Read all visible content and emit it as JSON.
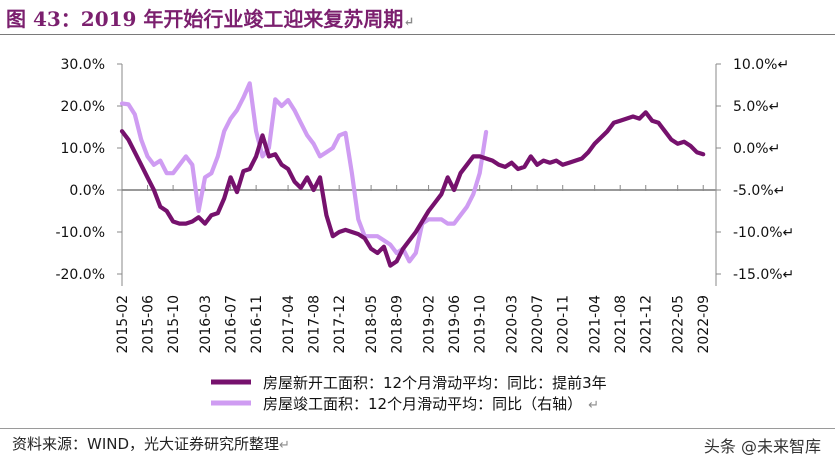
{
  "header": {
    "title": "图 43：2019 年开始行业竣工迎来复苏周期",
    "mark": "↵"
  },
  "footer": {
    "source": "资料来源：WIND，光大证券研究所整理",
    "watermark": "头条 @未来智库"
  },
  "colors": {
    "title": "#7b1f6e",
    "new_starts": "#76116d",
    "completions": "#cf9cf2",
    "zero_line": "#999999",
    "axis": "#888888"
  },
  "chart_data": {
    "type": "line",
    "legend_position": "bottom",
    "grid": false,
    "x_tick_labels": [
      "2015-02",
      "2015-06",
      "2015-10",
      "2016-03",
      "2016-07",
      "2016-11",
      "2017-04",
      "2017-08",
      "2017-12",
      "2018-05",
      "2018-09",
      "2019-02",
      "2019-06",
      "2019-10",
      "2020-03",
      "2020-07",
      "2020-11",
      "2021-04",
      "2021-08",
      "2021-12",
      "2022-05",
      "2022-09"
    ],
    "x_range": [
      "2015-02",
      "2022-11"
    ],
    "y_left": {
      "ticks": [
        "30.0%",
        "20.0%",
        "10.0%",
        "0.0%",
        "-10.0%",
        "-20.0%"
      ],
      "range": [
        -20,
        30
      ]
    },
    "y_right": {
      "ticks": [
        "10.0%↵",
        "5.0%↵",
        "0.0%↵",
        "-5.0%↵",
        "-10.0%↵",
        "-15.0%↵"
      ],
      "range": [
        -15,
        10
      ]
    },
    "series": [
      {
        "name": "房屋新开工面积：12个月滑动平均：同比：提前3年",
        "axis": "left",
        "points": [
          [
            "2015-02",
            14
          ],
          [
            "2015-03",
            12
          ],
          [
            "2015-04",
            9
          ],
          [
            "2015-05",
            6
          ],
          [
            "2015-06",
            3
          ],
          [
            "2015-07",
            0
          ],
          [
            "2015-08",
            -4
          ],
          [
            "2015-09",
            -5
          ],
          [
            "2015-10",
            -7.5
          ],
          [
            "2015-11",
            -8
          ],
          [
            "2015-12",
            -8
          ],
          [
            "2016-01",
            -7.5
          ],
          [
            "2016-02",
            -6.5
          ],
          [
            "2016-03",
            -8
          ],
          [
            "2016-04",
            -6
          ],
          [
            "2016-05",
            -5.5
          ],
          [
            "2016-06",
            -2
          ],
          [
            "2016-07",
            3
          ],
          [
            "2016-08",
            -0.5
          ],
          [
            "2016-09",
            4.5
          ],
          [
            "2016-10",
            5
          ],
          [
            "2016-11",
            8
          ],
          [
            "2016-12",
            13
          ],
          [
            "2017-01",
            8
          ],
          [
            "2017-02",
            8.5
          ],
          [
            "2017-03",
            6
          ],
          [
            "2017-04",
            5
          ],
          [
            "2017-05",
            2
          ],
          [
            "2017-06",
            0.5
          ],
          [
            "2017-07",
            3
          ],
          [
            "2017-08",
            0
          ],
          [
            "2017-09",
            3
          ],
          [
            "2017-10",
            -6
          ],
          [
            "2017-11",
            -11
          ],
          [
            "2017-12",
            -10
          ],
          [
            "2018-01",
            -9.5
          ],
          [
            "2018-02",
            -10
          ],
          [
            "2018-03",
            -10.5
          ],
          [
            "2018-04",
            -11.5
          ],
          [
            "2018-05",
            -14
          ],
          [
            "2018-06",
            -15
          ],
          [
            "2018-07",
            -13.5
          ],
          [
            "2018-08",
            -18
          ],
          [
            "2018-09",
            -17
          ],
          [
            "2018-10",
            -14
          ],
          [
            "2018-11",
            -12
          ],
          [
            "2018-12",
            -10
          ],
          [
            "2019-01",
            -7.5
          ],
          [
            "2019-02",
            -5
          ],
          [
            "2019-03",
            -3
          ],
          [
            "2019-04",
            -1
          ],
          [
            "2019-05",
            3
          ],
          [
            "2019-06",
            0
          ],
          [
            "2019-07",
            4
          ],
          [
            "2019-08",
            6
          ],
          [
            "2019-09",
            8
          ],
          [
            "2019-10",
            8
          ],
          [
            "2019-11",
            7.5
          ],
          [
            "2019-12",
            7
          ],
          [
            "2020-01",
            6
          ],
          [
            "2020-02",
            5.5
          ],
          [
            "2020-03",
            6.5
          ],
          [
            "2020-04",
            5
          ],
          [
            "2020-05",
            5.5
          ],
          [
            "2020-06",
            8
          ],
          [
            "2020-07",
            6
          ],
          [
            "2020-08",
            7
          ],
          [
            "2020-09",
            6.5
          ],
          [
            "2020-10",
            7
          ],
          [
            "2020-11",
            6
          ],
          [
            "2020-12",
            6.5
          ],
          [
            "2021-01",
            7
          ],
          [
            "2021-02",
            7.5
          ],
          [
            "2021-03",
            9
          ],
          [
            "2021-04",
            11
          ],
          [
            "2021-05",
            12.5
          ],
          [
            "2021-06",
            14
          ],
          [
            "2021-07",
            16
          ],
          [
            "2021-08",
            16.5
          ],
          [
            "2021-09",
            17
          ],
          [
            "2021-10",
            17.5
          ],
          [
            "2021-11",
            17
          ],
          [
            "2021-12",
            18.5
          ],
          [
            "2022-01",
            16.5
          ],
          [
            "2022-02",
            16
          ],
          [
            "2022-03",
            14
          ],
          [
            "2022-04",
            12
          ],
          [
            "2022-05",
            11
          ],
          [
            "2022-06",
            11.5
          ],
          [
            "2022-07",
            10.5
          ],
          [
            "2022-08",
            9
          ],
          [
            "2022-09",
            8.5
          ]
        ]
      },
      {
        "name": "房屋竣工面积：12个月滑动平均：同比（右轴）",
        "axis": "right",
        "points": [
          [
            "2015-02",
            5.3
          ],
          [
            "2015-03",
            5.2
          ],
          [
            "2015-04",
            4
          ],
          [
            "2015-05",
            1
          ],
          [
            "2015-06",
            -1
          ],
          [
            "2015-07",
            -2
          ],
          [
            "2015-08",
            -1.5
          ],
          [
            "2015-09",
            -3
          ],
          [
            "2015-10",
            -3
          ],
          [
            "2015-11",
            -2
          ],
          [
            "2015-12",
            -1
          ],
          [
            "2016-01",
            -2
          ],
          [
            "2016-02",
            -7.5
          ],
          [
            "2016-03",
            -3.5
          ],
          [
            "2016-04",
            -3
          ],
          [
            "2016-05",
            -1
          ],
          [
            "2016-06",
            2
          ],
          [
            "2016-07",
            3.5
          ],
          [
            "2016-08",
            4.5
          ],
          [
            "2016-09",
            6
          ],
          [
            "2016-10",
            7.7
          ],
          [
            "2016-11",
            2
          ],
          [
            "2016-12",
            -1
          ],
          [
            "2017-01",
            0
          ],
          [
            "2017-02",
            5.8
          ],
          [
            "2017-03",
            5
          ],
          [
            "2017-04",
            5.7
          ],
          [
            "2017-05",
            4.5
          ],
          [
            "2017-06",
            3
          ],
          [
            "2017-07",
            1.5
          ],
          [
            "2017-08",
            0.5
          ],
          [
            "2017-09",
            -1
          ],
          [
            "2017-10",
            -0.5
          ],
          [
            "2017-11",
            0
          ],
          [
            "2017-12",
            1.5
          ],
          [
            "2018-01",
            1.8
          ],
          [
            "2018-02",
            -3
          ],
          [
            "2018-03",
            -8.5
          ],
          [
            "2018-04",
            -10.5
          ],
          [
            "2018-05",
            -10.5
          ],
          [
            "2018-06",
            -10.5
          ],
          [
            "2018-07",
            -11
          ],
          [
            "2018-08",
            -11.5
          ],
          [
            "2018-09",
            -12.5
          ],
          [
            "2018-10",
            -12
          ],
          [
            "2018-11",
            -13.5
          ],
          [
            "2018-12",
            -12.5
          ],
          [
            "2019-01",
            -9
          ],
          [
            "2019-02",
            -8.5
          ],
          [
            "2019-03",
            -8.5
          ],
          [
            "2019-04",
            -8.5
          ],
          [
            "2019-05",
            -9
          ],
          [
            "2019-06",
            -9
          ],
          [
            "2019-07",
            -8
          ],
          [
            "2019-08",
            -7
          ],
          [
            "2019-09",
            -5.5
          ],
          [
            "2019-10",
            -3
          ],
          [
            "2019-11",
            1.9
          ]
        ]
      }
    ]
  }
}
